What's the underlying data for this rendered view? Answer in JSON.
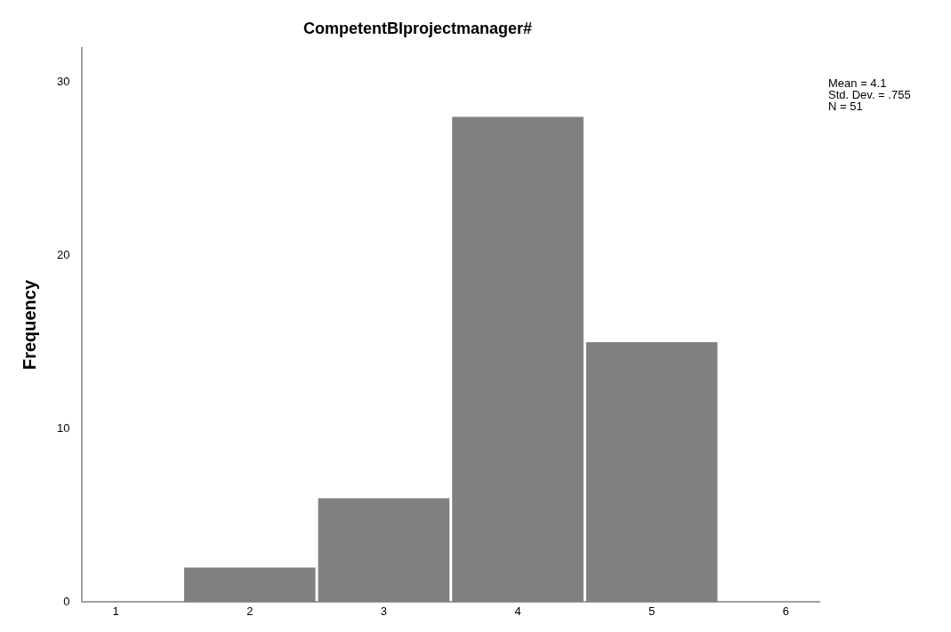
{
  "chart_data": {
    "type": "histogram",
    "title": "CompetentBIprojectmanager#",
    "ylabel": "Frequency",
    "bins": [
      1.5,
      2.5,
      3.5,
      4.5,
      5.5
    ],
    "values": [
      2,
      6,
      28,
      15
    ],
    "color": "#808080",
    "xlim": [
      0.75,
      6.25
    ],
    "xticks": [
      1,
      2,
      3,
      4,
      5,
      6
    ],
    "ylim": [
      0,
      32
    ],
    "yticks": [
      0,
      10,
      20,
      30
    ],
    "grid": false,
    "legend": false,
    "annotations": [
      "Mean = 4.1",
      "Std. Dev. = .755",
      "N = 51"
    ]
  }
}
